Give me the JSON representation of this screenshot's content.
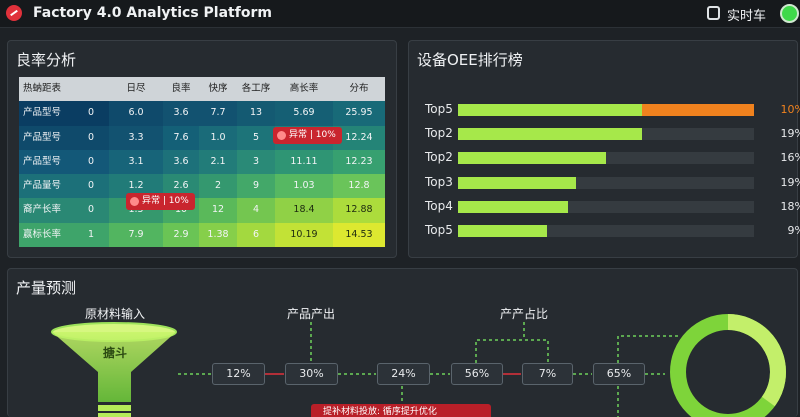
{
  "header": {
    "app_title": "Factory 4.0 Analytics Platform",
    "realtime_label": "实时车",
    "status_color": "#3fd94a"
  },
  "yield_panel": {
    "title": "良率分析",
    "headers": [
      "热蚋距表",
      "",
      "日尽",
      "良率",
      "快序",
      "各工序",
      "高长率",
      "分布"
    ],
    "rows": [
      {
        "label": "产品型号",
        "values": [
          "0",
          "6.0",
          "3.6",
          "7.7",
          "13",
          "5.69",
          "25.95"
        ],
        "colors": [
          "#0a3d62",
          "#0f4a6b",
          "#125270",
          "#125270",
          "#145a72",
          "#155f74",
          "#186a78"
        ]
      },
      {
        "label": "产品型号",
        "values": [
          "0",
          "3.3",
          "7.6",
          "1.0",
          "5",
          "11.25",
          "12.24"
        ],
        "colors": [
          "#0f4a6b",
          "#125270",
          "#146077",
          "#1a6b79",
          "#1d7479",
          "#207c7a",
          "#248477"
        ]
      },
      {
        "label": "产品型号",
        "values": [
          "0",
          "3.1",
          "3.6",
          "2.1",
          "3",
          "11.11",
          "12.23"
        ],
        "colors": [
          "#135878",
          "#176479",
          "#1d717a",
          "#227c79",
          "#2a8a77",
          "#2f9574",
          "#37a070"
        ]
      },
      {
        "label": "产品量号",
        "values": [
          "0",
          "1.2",
          "2.6",
          "2",
          "9",
          "1.03",
          "12.8"
        ],
        "colors": [
          "#1c7079",
          "#217b78",
          "#2a8a74",
          "#34986f",
          "#43a869",
          "#56b862",
          "#6ac45a"
        ]
      },
      {
        "label": "裔产长率",
        "values": [
          "0",
          "1.5",
          "10",
          "12",
          "4",
          "18.4",
          "12.88"
        ],
        "colors": [
          "#2a8874",
          "#35986d",
          "#45aa64",
          "#5ab95a",
          "#74c650",
          "#90d146",
          "#acdc3c"
        ]
      },
      {
        "label": "赢标长率",
        "values": [
          "1",
          "7.9",
          "2.9",
          "1.38",
          "6",
          "10.19",
          "14.53"
        ],
        "colors": [
          "#3ea46a",
          "#52b560",
          "#6ac455",
          "#86cf4a",
          "#a3d93f",
          "#c2e236",
          "#dde830"
        ]
      }
    ],
    "alert_tags": [
      "异常 | 10%",
      "异常 | 10%"
    ]
  },
  "oee_panel": {
    "title": "设备OEE排行榜",
    "items": [
      {
        "label": "Top5",
        "fill": 0.62,
        "extra": 0.38,
        "value": "10%"
      },
      {
        "label": "Top2",
        "fill": 0.62,
        "value": "19%"
      },
      {
        "label": "Top2",
        "fill": 0.5,
        "value": "16%"
      },
      {
        "label": "Top3",
        "fill": 0.4,
        "value": "19%"
      },
      {
        "label": "Top4",
        "fill": 0.37,
        "value": "18%"
      },
      {
        "label": "Top5",
        "fill": 0.3,
        "value": "9%"
      }
    ]
  },
  "forecast_panel": {
    "title": "产量预测",
    "stage_labels": [
      "原材料输入",
      "产品产出",
      "产产占比"
    ],
    "funnel_label": "搪斗",
    "nodes": [
      "12%",
      "30%",
      "24%",
      "56%",
      "7%",
      "65%"
    ],
    "warning": "提补材料投放: 循序提升优化"
  },
  "colors": {
    "accent_green": "#a6e84a",
    "accent_orange": "#f0821e",
    "alert_red": "#c9252e"
  }
}
